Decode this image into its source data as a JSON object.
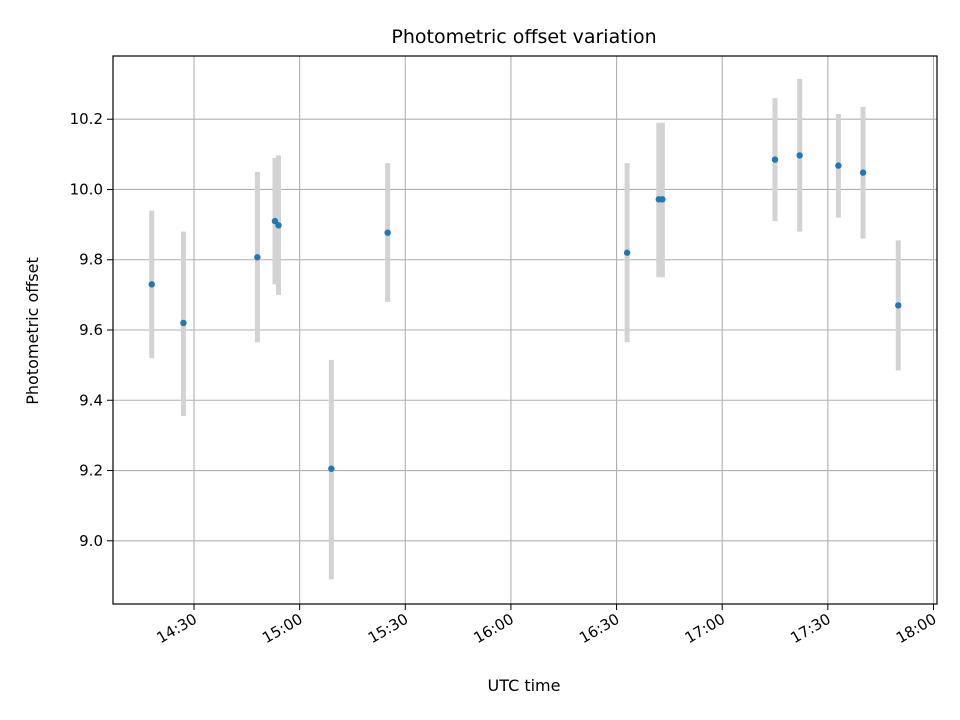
{
  "chart_data": {
    "type": "scatter",
    "title": "Photometric offset variation",
    "xlabel": "UTC time",
    "ylabel": "Photometric offset",
    "grid": true,
    "xlim": [
      "14:07",
      "18:01"
    ],
    "ylim": [
      8.82,
      10.38
    ],
    "x_ticks": [
      "14:30",
      "15:00",
      "15:30",
      "16:00",
      "16:30",
      "17:00",
      "17:30",
      "18:00"
    ],
    "y_ticks": [
      "9.0",
      "9.2",
      "9.4",
      "9.6",
      "9.8",
      "10.0",
      "10.2"
    ],
    "colors": {
      "marker": "#1f77b4",
      "errorbar": "#d3d3d3",
      "grid": "#b0b0b0"
    },
    "points": [
      {
        "x": "14:18",
        "y": 9.73,
        "y_low": 9.52,
        "y_high": 9.94
      },
      {
        "x": "14:27",
        "y": 9.62,
        "y_low": 9.355,
        "y_high": 9.88
      },
      {
        "x": "14:48",
        "y": 9.807,
        "y_low": 9.565,
        "y_high": 10.05
      },
      {
        "x": "14:53",
        "y": 9.91,
        "y_low": 9.73,
        "y_high": 10.09
      },
      {
        "x": "14:54",
        "y": 9.898,
        "y_low": 9.7,
        "y_high": 10.097
      },
      {
        "x": "15:09",
        "y": 9.205,
        "y_low": 8.89,
        "y_high": 9.515
      },
      {
        "x": "15:25",
        "y": 9.877,
        "y_low": 9.68,
        "y_high": 10.075
      },
      {
        "x": "16:33",
        "y": 9.82,
        "y_low": 9.565,
        "y_high": 10.075
      },
      {
        "x": "16:42",
        "y": 9.972,
        "y_low": 9.75,
        "y_high": 10.19
      },
      {
        "x": "16:43",
        "y": 9.972,
        "y_low": 9.75,
        "y_high": 10.19
      },
      {
        "x": "17:15",
        "y": 10.085,
        "y_low": 9.91,
        "y_high": 10.26
      },
      {
        "x": "17:22",
        "y": 10.097,
        "y_low": 9.88,
        "y_high": 10.315
      },
      {
        "x": "17:33",
        "y": 10.068,
        "y_low": 9.92,
        "y_high": 10.215
      },
      {
        "x": "17:40",
        "y": 10.048,
        "y_low": 9.86,
        "y_high": 10.235
      },
      {
        "x": "17:50",
        "y": 9.67,
        "y_low": 9.485,
        "y_high": 9.855
      }
    ]
  }
}
